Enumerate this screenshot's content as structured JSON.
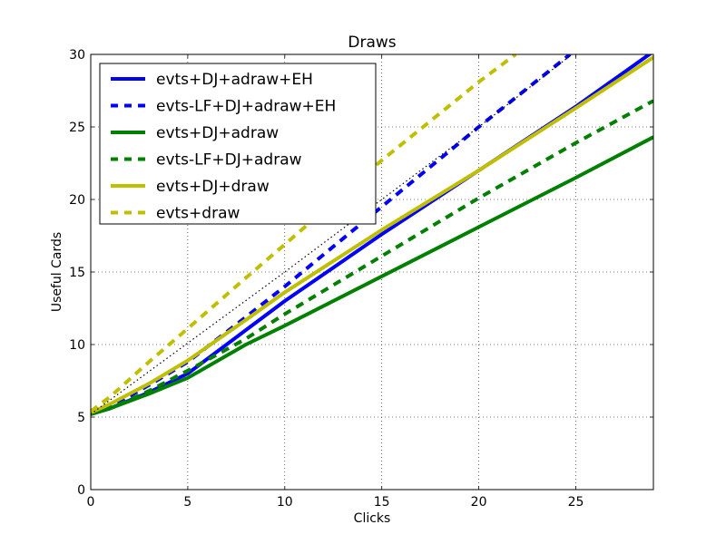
{
  "chart_data": {
    "type": "line",
    "title": "Draws",
    "xlabel": "Clicks",
    "ylabel": "Useful Cards",
    "xlim": [
      0,
      29
    ],
    "ylim": [
      0,
      30
    ],
    "xticks": [
      0,
      5,
      10,
      15,
      20,
      25
    ],
    "yticks": [
      0,
      5,
      10,
      15,
      20,
      25,
      30
    ],
    "grid": true,
    "legend_position": "upper-left",
    "series": [
      {
        "name": "evts+DJ+adraw+EH",
        "color": "#0000ff",
        "style": "solid",
        "x": [
          0,
          1,
          3,
          5,
          8,
          10,
          15,
          20,
          25,
          29
        ],
        "y": [
          5.2,
          5.6,
          6.7,
          8.0,
          11.0,
          13.0,
          17.6,
          22.0,
          26.4,
          30.2
        ]
      },
      {
        "name": "evts-LF+DJ+adraw+EH",
        "color": "#0000ff",
        "style": "dashed",
        "x": [
          0,
          1,
          3,
          5,
          8,
          10,
          15,
          20,
          24.7
        ],
        "y": [
          5.2,
          5.7,
          7.2,
          8.8,
          11.9,
          14.0,
          19.5,
          25.0,
          30.0
        ]
      },
      {
        "name": "evts+DJ+adraw",
        "color": "#008000",
        "style": "solid",
        "x": [
          0,
          1,
          3,
          5,
          8,
          10,
          15,
          20,
          25,
          29
        ],
        "y": [
          5.2,
          5.6,
          6.6,
          7.7,
          10.0,
          11.3,
          14.7,
          18.1,
          21.5,
          24.3
        ]
      },
      {
        "name": "evts-LF+DJ+adraw",
        "color": "#008000",
        "style": "dashed",
        "x": [
          0,
          1,
          3,
          5,
          8,
          10,
          15,
          20,
          25,
          29
        ],
        "y": [
          5.2,
          5.6,
          6.8,
          8.2,
          10.4,
          12.1,
          16.1,
          20.1,
          23.9,
          26.8
        ]
      },
      {
        "name": "evts+DJ+draw",
        "color": "#bfbf00",
        "style": "solid",
        "x": [
          0,
          1,
          3,
          5,
          8,
          10,
          15,
          20,
          25,
          29
        ],
        "y": [
          5.3,
          5.9,
          7.3,
          8.9,
          11.7,
          13.6,
          17.9,
          22.0,
          26.3,
          29.8
        ]
      },
      {
        "name": "evts+draw",
        "color": "#bfbf00",
        "style": "dashed",
        "x": [
          0,
          1,
          3,
          5,
          8,
          10,
          15,
          20,
          21.9
        ],
        "y": [
          5.4,
          6.4,
          8.8,
          11.1,
          14.6,
          16.9,
          22.7,
          28.1,
          30.0
        ]
      },
      {
        "name": "",
        "color": "#000000",
        "style": "dotted",
        "x": [
          0,
          10,
          20,
          24.8
        ],
        "y": [
          5.2,
          15.0,
          25.0,
          30.0
        ]
      }
    ]
  }
}
